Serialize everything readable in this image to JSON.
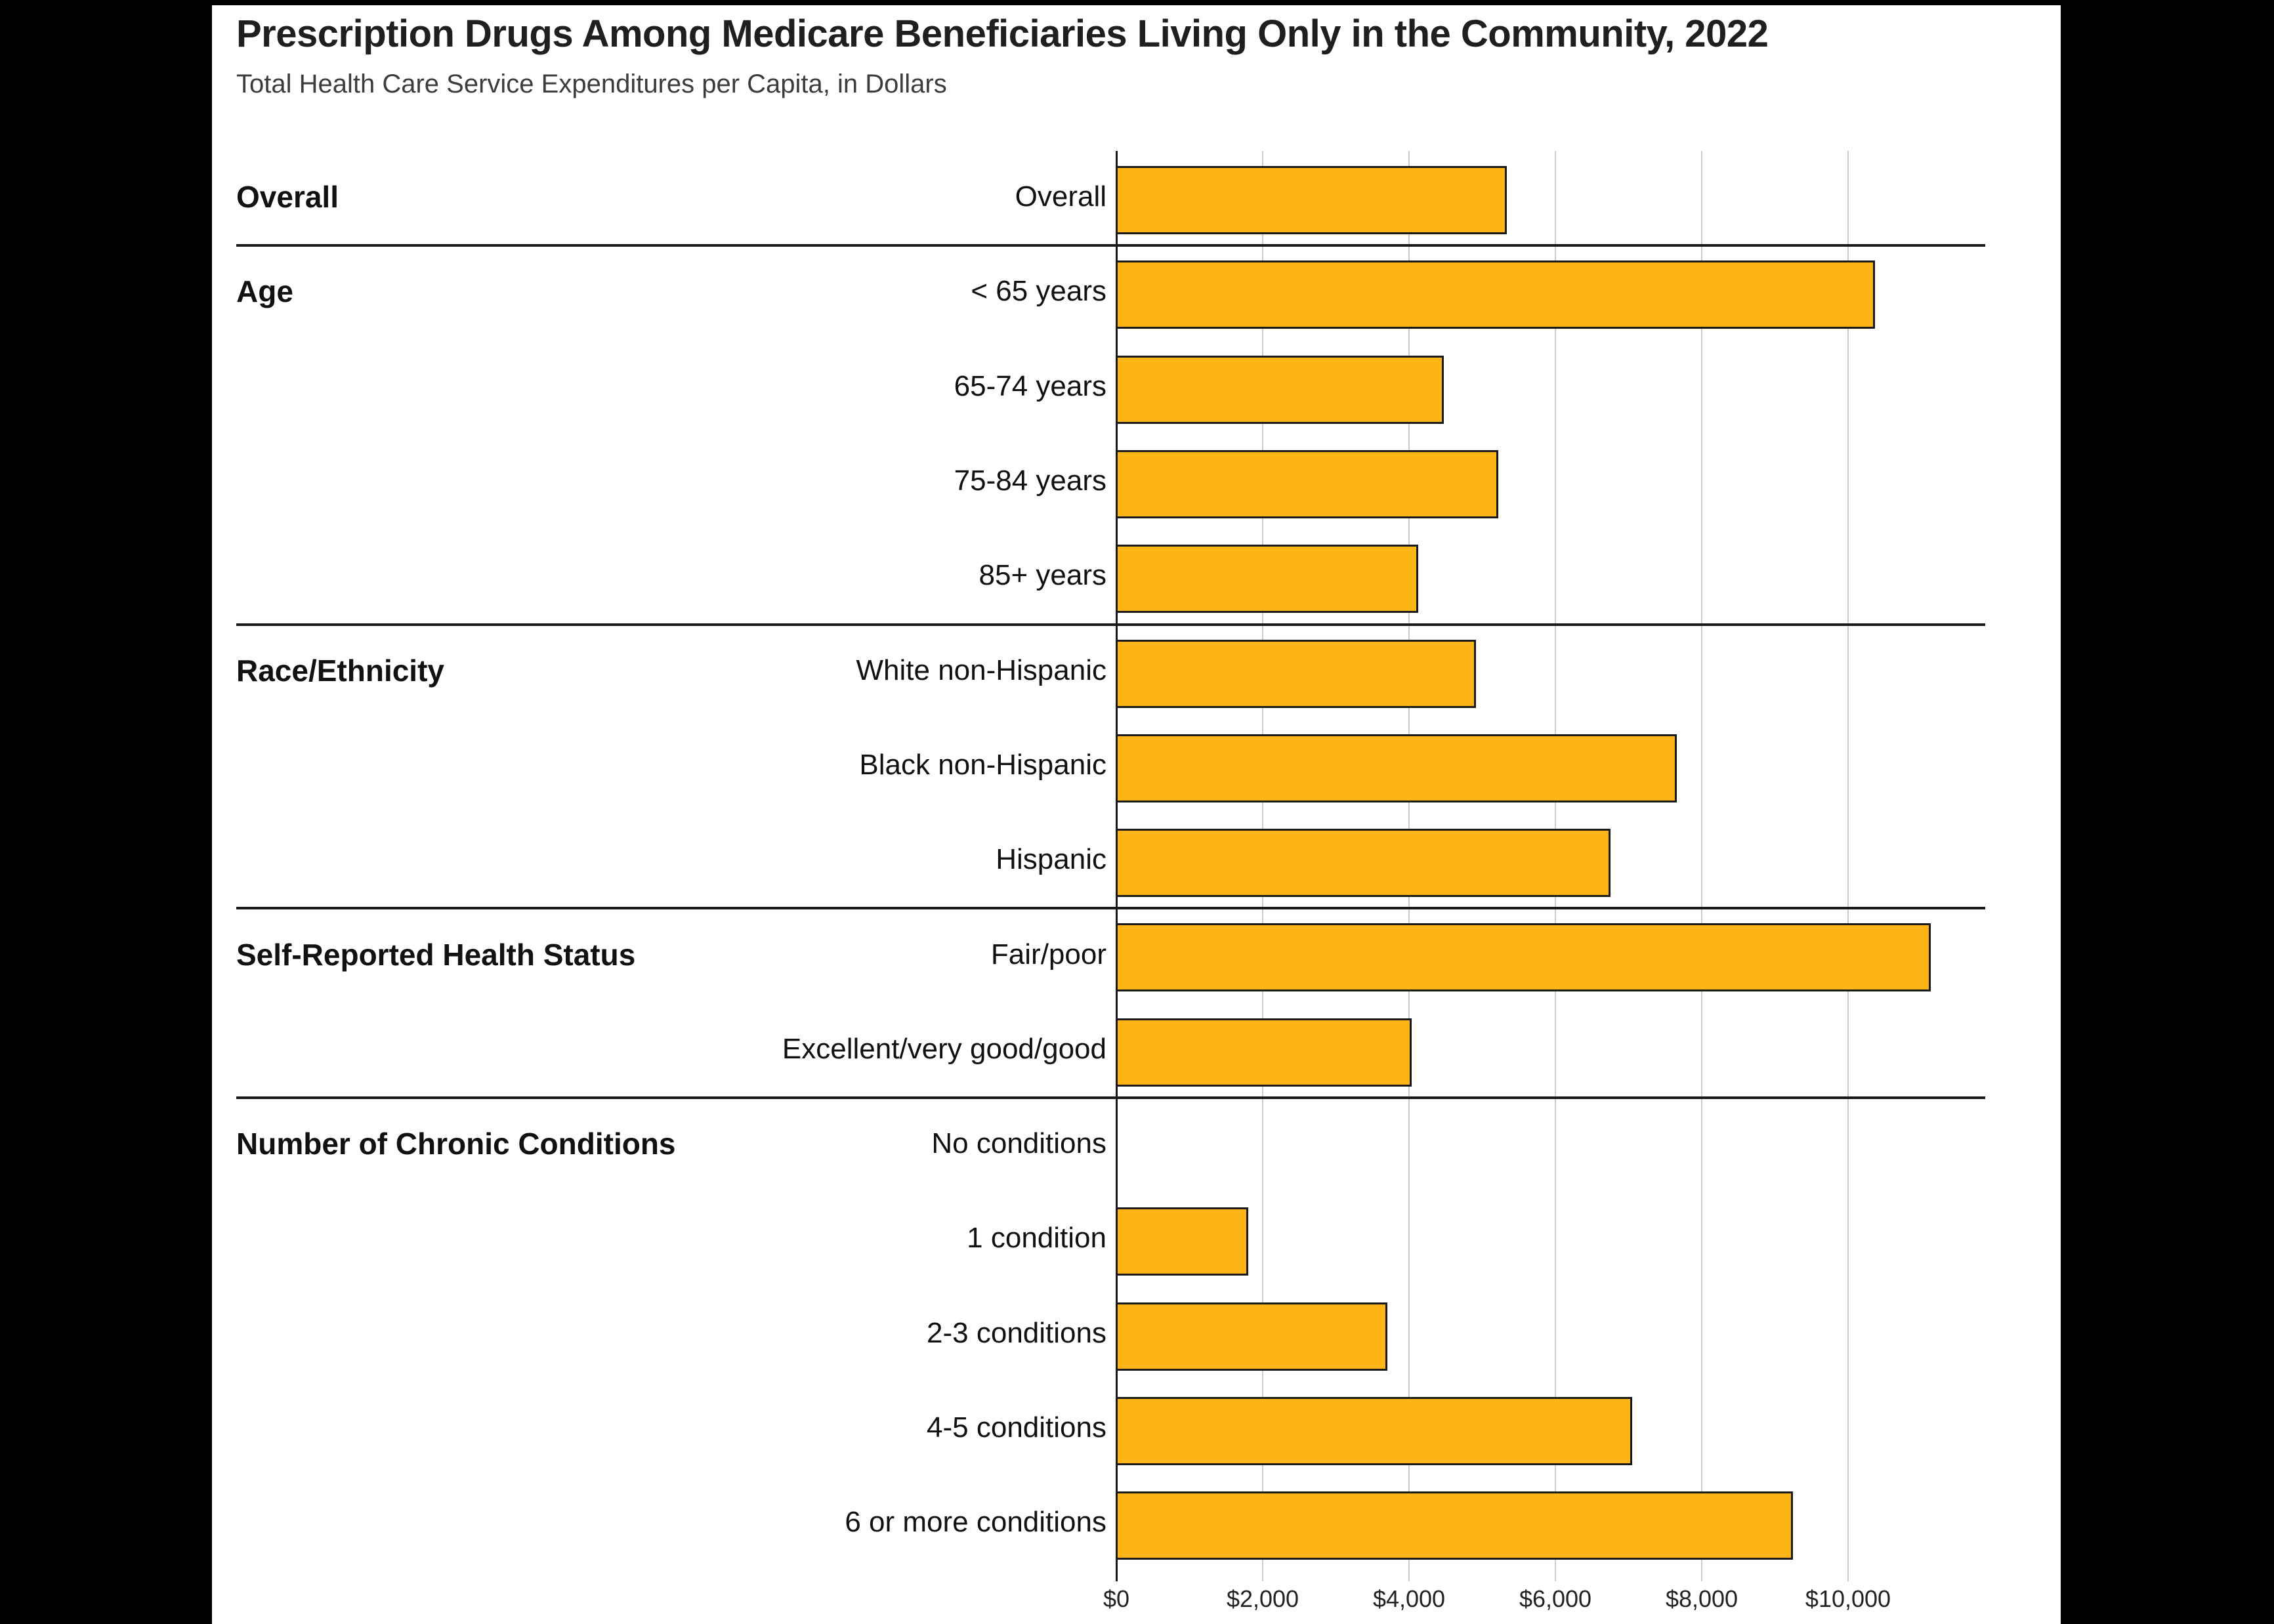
{
  "colors": {
    "page_background": "#000000",
    "card_background": "#FFFFFF",
    "bar_fill": "#FDB515",
    "bar_border": "#1A1A1A",
    "gridline": "#CBCBCB",
    "axis_line": "#1A1A1A",
    "divider": "#1A1A1A",
    "title_text": "#1F1F1F",
    "subtitle_text": "#3C3C3C",
    "label_text": "#111111",
    "tick_text": "#222222"
  },
  "chart_data": {
    "type": "bar",
    "orientation": "horizontal",
    "title": "Prescription Drugs Among Medicare Beneficiaries Living Only in the Community, 2022",
    "subtitle": "Total Health Care Service Expenditures per Capita, in Dollars",
    "xlabel": "",
    "ylabel": "",
    "value_unit": "USD per capita",
    "xlim": [
      0,
      11900
    ],
    "grid": true,
    "gridline_interval": 2000,
    "legend": "none",
    "x_ticks": [
      {
        "value": 0,
        "label": "$0"
      },
      {
        "value": 2000,
        "label": "$2,000"
      },
      {
        "value": 4000,
        "label": "$4,000"
      },
      {
        "value": 6000,
        "label": "$6,000"
      },
      {
        "value": 8000,
        "label": "$8,000"
      },
      {
        "value": 10000,
        "label": "$10,000"
      }
    ],
    "groups": [
      {
        "name": "Overall",
        "items": [
          {
            "label": "Overall",
            "value": 5290
          }
        ]
      },
      {
        "name": "Age",
        "items": [
          {
            "label": "< 65 years",
            "value": 10320
          },
          {
            "label": "65-74 years",
            "value": 4430
          },
          {
            "label": "75-84 years",
            "value": 5175
          },
          {
            "label": "85+ years",
            "value": 4080
          }
        ]
      },
      {
        "name": "Race/Ethnicity",
        "items": [
          {
            "label": "White non-Hispanic",
            "value": 4870
          },
          {
            "label": "Black non-Hispanic",
            "value": 7615
          },
          {
            "label": "Hispanic",
            "value": 6710
          }
        ]
      },
      {
        "name": "Self-Reported Health Status",
        "items": [
          {
            "label": "Fair/poor",
            "value": 11085
          },
          {
            "label": "Excellent/very good/good",
            "value": 3990
          }
        ]
      },
      {
        "name": "Number of Chronic Conditions",
        "items": [
          {
            "label": "No conditions",
            "value": 0
          },
          {
            "label": "1 condition",
            "value": 1760
          },
          {
            "label": "2-3 conditions",
            "value": 3660
          },
          {
            "label": "4-5 conditions",
            "value": 7000
          },
          {
            "label": "6 or more conditions",
            "value": 9200
          }
        ]
      }
    ]
  }
}
